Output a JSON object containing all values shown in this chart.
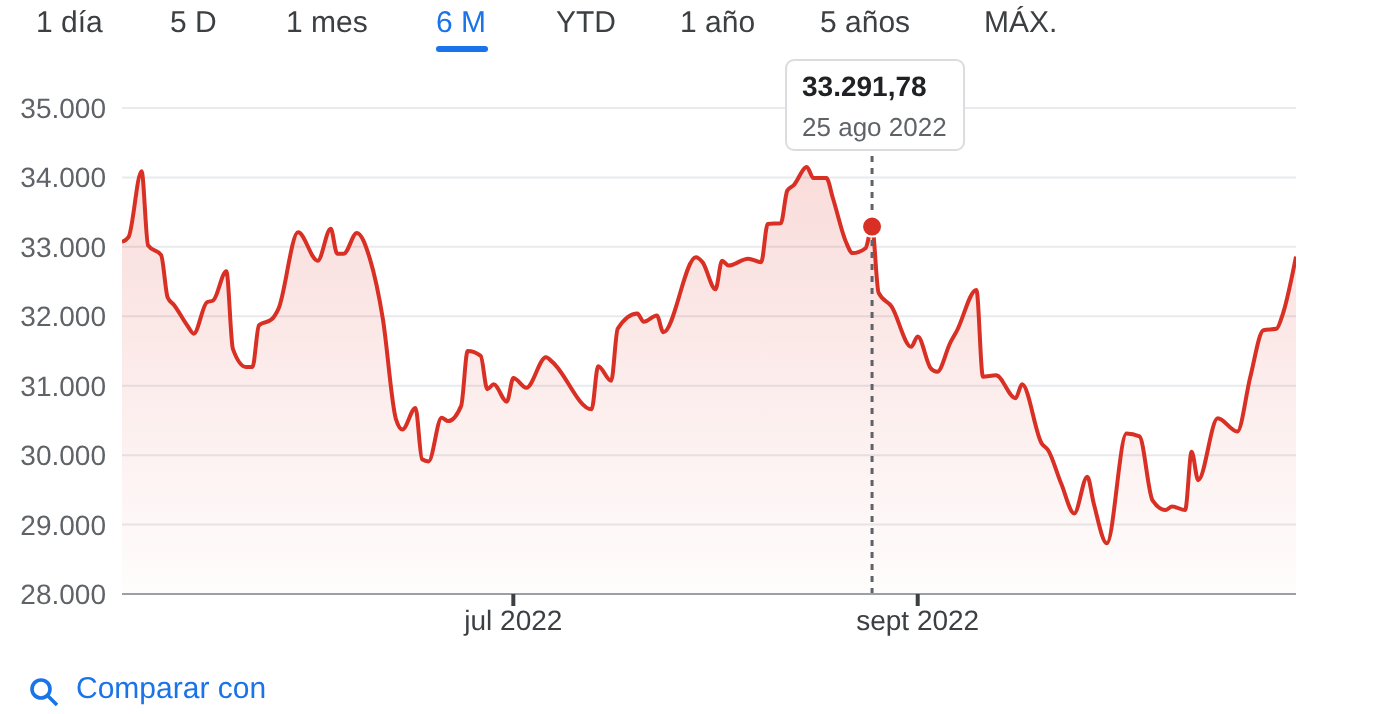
{
  "chart_data": {
    "type": "area",
    "color": "#d93025",
    "marker": "none",
    "grid": "y",
    "annotations": [
      "33.291,78",
      "25 ago 2022",
      "1 día",
      "5 D",
      "1 mes",
      "6 M",
      "YTD",
      "1 año",
      "5 años",
      "MÁX.",
      "Comparar con"
    ],
    "ref_lines": [
      {
        "axis": "x",
        "value": "2022-08-25",
        "label": null,
        "color": "#5f6368",
        "line_style": "dotted"
      }
    ],
    "xlim": [
      "2022-05-02",
      "2022-10-29"
    ],
    "xticks": [
      {
        "value": "2022-07-01",
        "label": "jul 2022"
      },
      {
        "value": "2022-09-01",
        "label": "sept 2022"
      }
    ],
    "ylim": [
      28000,
      35000
    ],
    "yticks": [
      {
        "value": 28000,
        "label": "28.000"
      },
      {
        "value": 29000,
        "label": "29.000"
      },
      {
        "value": 30000,
        "label": "30.000"
      },
      {
        "value": 31000,
        "label": "31.000"
      },
      {
        "value": 32000,
        "label": "32.000"
      },
      {
        "value": 33000,
        "label": "33.000"
      },
      {
        "value": 34000,
        "label": "34.000"
      },
      {
        "value": 35000,
        "label": "35.000"
      }
    ],
    "x": [
      "2022-05-02",
      "2022-05-03",
      "2022-05-05",
      "2022-05-06",
      "2022-05-08",
      "2022-05-09",
      "2022-05-10",
      "2022-05-12",
      "2022-05-13",
      "2022-05-15",
      "2022-05-16",
      "2022-05-18",
      "2022-05-19",
      "2022-05-21",
      "2022-05-22",
      "2022-05-23",
      "2022-05-25",
      "2022-05-26",
      "2022-05-29",
      "2022-06-01",
      "2022-06-03",
      "2022-06-04",
      "2022-06-05",
      "2022-06-07",
      "2022-06-09",
      "2022-06-11",
      "2022-06-13",
      "2022-06-14",
      "2022-06-16",
      "2022-06-17",
      "2022-06-18",
      "2022-06-20",
      "2022-06-21",
      "2022-06-23",
      "2022-06-24",
      "2022-06-26",
      "2022-06-27",
      "2022-06-28",
      "2022-06-30",
      "2022-07-01",
      "2022-07-03",
      "2022-07-06",
      "2022-07-07",
      "2022-07-13",
      "2022-07-14",
      "2022-07-16",
      "2022-07-17",
      "2022-07-20",
      "2022-07-21",
      "2022-07-23",
      "2022-07-24",
      "2022-07-29",
      "2022-07-30",
      "2022-08-01",
      "2022-08-02",
      "2022-08-03",
      "2022-08-06",
      "2022-08-08",
      "2022-08-09",
      "2022-08-11",
      "2022-08-12",
      "2022-08-13",
      "2022-08-15",
      "2022-08-16",
      "2022-08-18",
      "2022-08-19",
      "2022-08-21",
      "2022-08-22",
      "2022-08-24",
      "2022-08-25",
      "2022-08-26",
      "2022-08-28",
      "2022-08-31",
      "2022-09-01",
      "2022-09-03",
      "2022-09-04",
      "2022-09-06",
      "2022-09-07",
      "2022-09-10",
      "2022-09-11",
      "2022-09-13",
      "2022-09-16",
      "2022-09-17",
      "2022-09-20",
      "2022-09-21",
      "2022-09-23",
      "2022-09-25",
      "2022-09-27",
      "2022-09-28",
      "2022-09-30",
      "2022-10-03",
      "2022-10-05",
      "2022-10-07",
      "2022-10-09",
      "2022-10-10",
      "2022-10-12",
      "2022-10-13",
      "2022-10-14",
      "2022-10-17",
      "2022-10-20",
      "2022-10-22",
      "2022-10-24",
      "2022-10-26",
      "2022-10-27",
      "2022-10-29"
    ],
    "values": [
      33070,
      33140,
      34090,
      33020,
      32880,
      32270,
      32160,
      31870,
      31750,
      32200,
      32230,
      32650,
      31530,
      31270,
      31270,
      31870,
      31960,
      32110,
      33210,
      32800,
      33260,
      32900,
      32900,
      33200,
      32830,
      31960,
      30520,
      30370,
      30680,
      29940,
      29910,
      30540,
      30490,
      30710,
      31500,
      31430,
      30950,
      31020,
      30770,
      31110,
      30970,
      31410,
      31340,
      30660,
      31280,
      31070,
      31820,
      32040,
      31920,
      32010,
      31770,
      32850,
      32780,
      32390,
      32800,
      32730,
      32830,
      32780,
      33330,
      33340,
      33810,
      33890,
      34150,
      33990,
      33990,
      33700,
      33070,
      32910,
      32980,
      33291.78,
      32340,
      32140,
      31560,
      31710,
      31250,
      31200,
      31620,
      31790,
      32380,
      31130,
      31150,
      30820,
      31020,
      30170,
      30070,
      29590,
      29160,
      29690,
      29300,
      28730,
      30310,
      30270,
      29350,
      29210,
      29260,
      29210,
      30050,
      29640,
      30530,
      30340,
      31130,
      31800,
      31820,
      32040,
      32860
    ]
  }
}
